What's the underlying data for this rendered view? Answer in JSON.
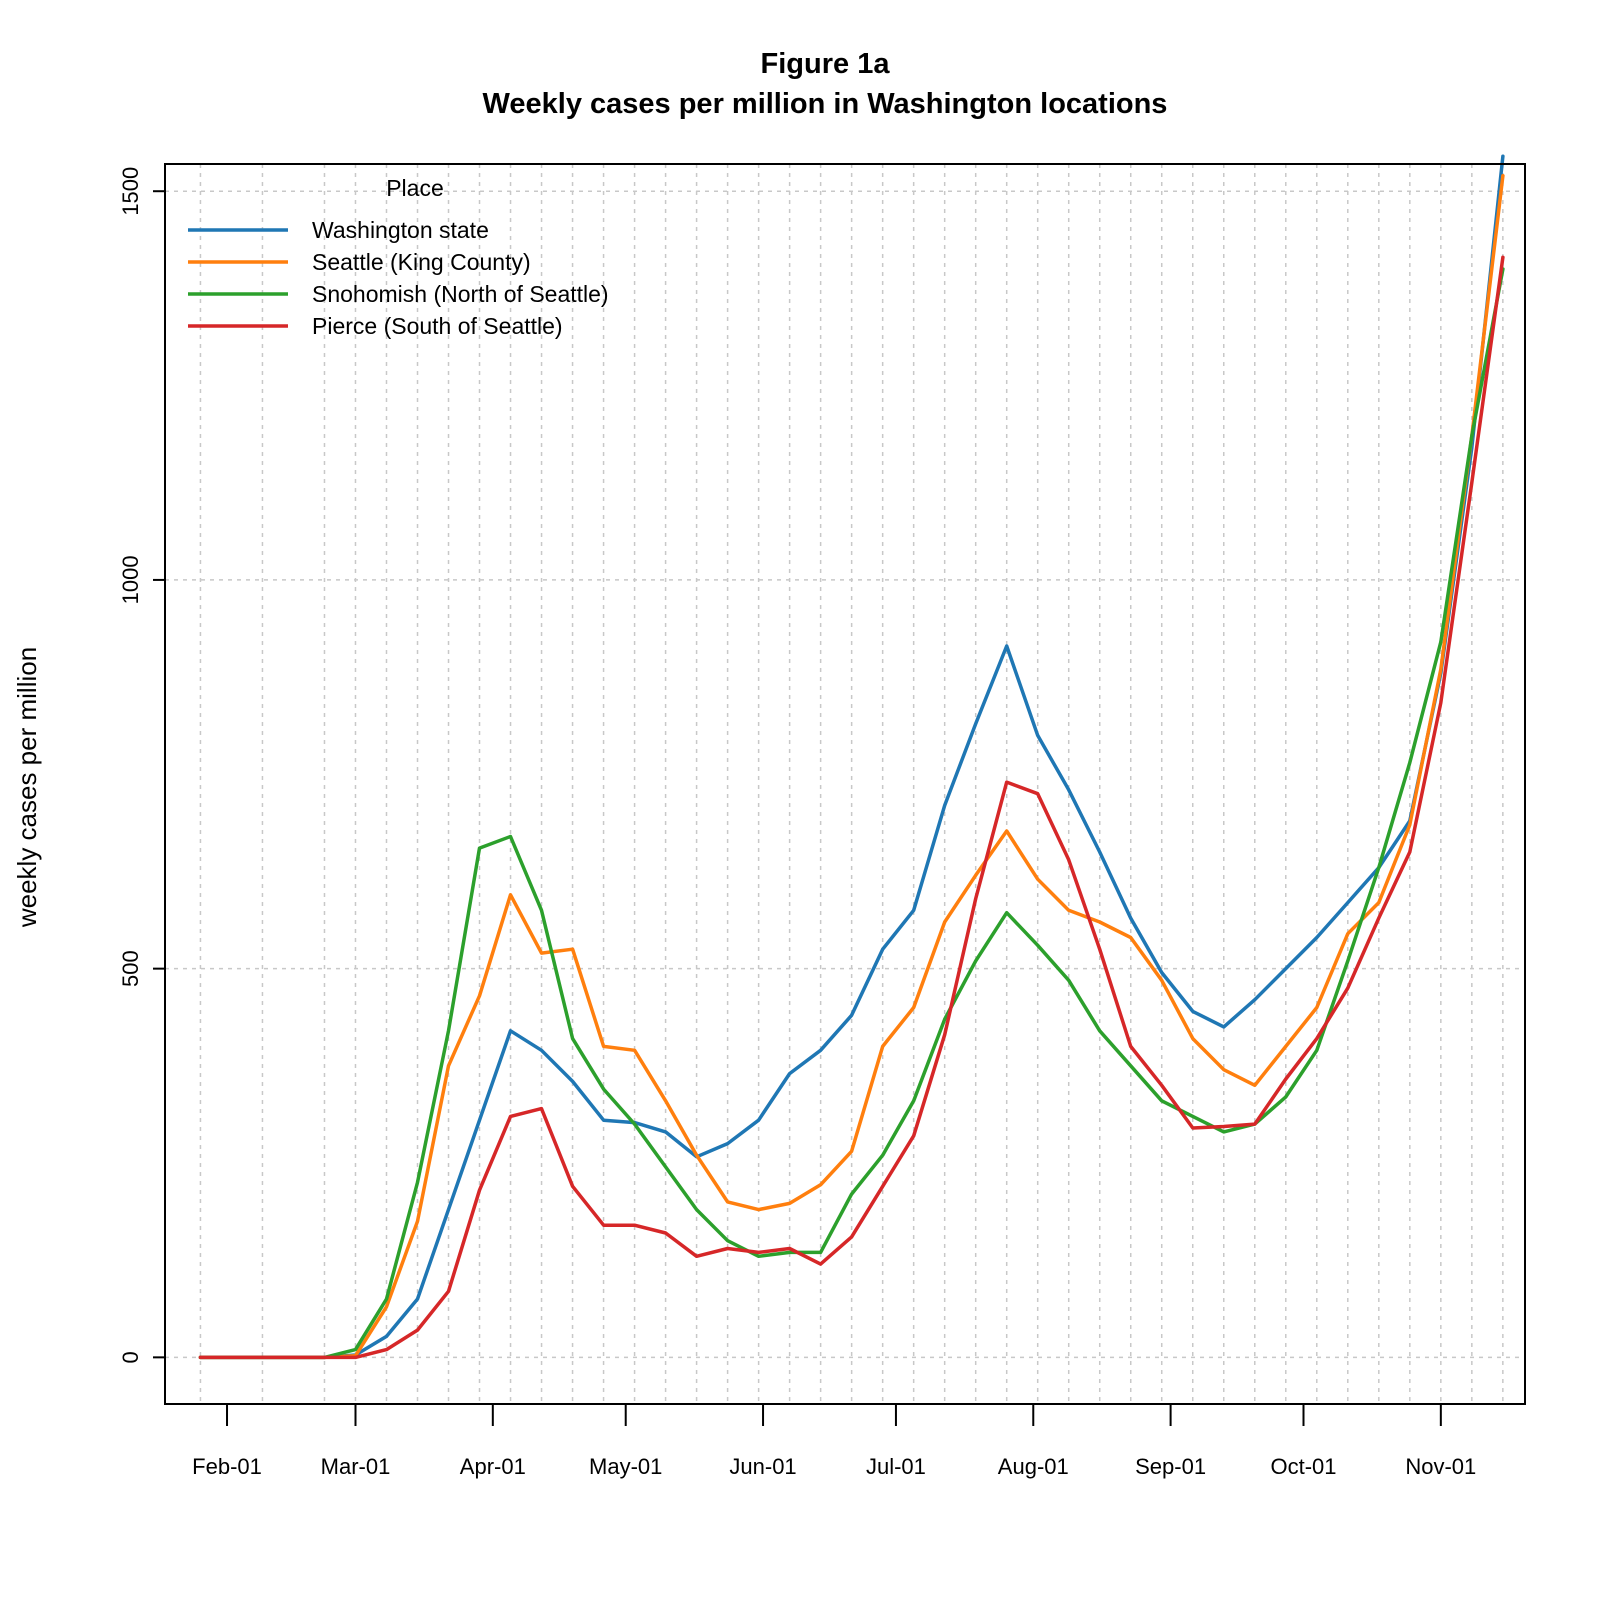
{
  "chart_data": {
    "type": "line",
    "title": "Figure 1a",
    "subtitle": "Weekly cases per million in Washington locations",
    "xlabel": "",
    "ylabel": "weekly cases per million",
    "ylim": [
      -60,
      1535
    ],
    "yticks": [
      0,
      500,
      1000,
      1500
    ],
    "xlim": [
      "2020-01-18",
      "2020-11-20"
    ],
    "xticks": [
      {
        "date": "2020-02-01",
        "label": "Feb-01"
      },
      {
        "date": "2020-03-01",
        "label": "Mar-01"
      },
      {
        "date": "2020-04-01",
        "label": "Apr-01"
      },
      {
        "date": "2020-05-01",
        "label": "May-01"
      },
      {
        "date": "2020-06-01",
        "label": "Jun-01"
      },
      {
        "date": "2020-07-01",
        "label": "Jul-01"
      },
      {
        "date": "2020-08-01",
        "label": "Aug-01"
      },
      {
        "date": "2020-09-01",
        "label": "Sep-01"
      },
      {
        "date": "2020-10-01",
        "label": "Oct-01"
      },
      {
        "date": "2020-11-01",
        "label": "Nov-01"
      }
    ],
    "x": [
      "2020-01-26",
      "2020-02-09",
      "2020-02-23",
      "2020-03-01",
      "2020-03-08",
      "2020-03-15",
      "2020-03-22",
      "2020-03-29",
      "2020-04-05",
      "2020-04-12",
      "2020-04-19",
      "2020-04-26",
      "2020-05-03",
      "2020-05-10",
      "2020-05-17",
      "2020-05-24",
      "2020-05-31",
      "2020-06-07",
      "2020-06-14",
      "2020-06-21",
      "2020-06-28",
      "2020-07-05",
      "2020-07-12",
      "2020-07-19",
      "2020-07-26",
      "2020-08-02",
      "2020-08-09",
      "2020-08-16",
      "2020-08-23",
      "2020-08-30",
      "2020-09-06",
      "2020-09-13",
      "2020-09-20",
      "2020-09-27",
      "2020-10-04",
      "2020-10-11",
      "2020-10-18",
      "2020-10-25",
      "2020-11-01",
      "2020-11-08",
      "2020-11-15"
    ],
    "series": [
      {
        "name": "Washington state",
        "color": "#1f77b4",
        "values": [
          0,
          0,
          0,
          3,
          27,
          75,
          190,
          305,
          420,
          395,
          355,
          305,
          302,
          290,
          258,
          275,
          305,
          365,
          395,
          440,
          525,
          575,
          710,
          815,
          915,
          800,
          730,
          650,
          565,
          495,
          445,
          425,
          460,
          500,
          540,
          585,
          630,
          690,
          880,
          1170,
          1545
        ]
      },
      {
        "name": "Seattle (King County)",
        "color": "#ff7f0e",
        "values": [
          0,
          0,
          0,
          2,
          65,
          175,
          375,
          465,
          595,
          520,
          525,
          400,
          395,
          330,
          260,
          200,
          190,
          198,
          222,
          265,
          400,
          450,
          560,
          620,
          677,
          615,
          575,
          560,
          540,
          485,
          410,
          370,
          350,
          400,
          450,
          545,
          585,
          685,
          885,
          1185,
          1520
        ]
      },
      {
        "name": "Snohomish (North of Seattle)",
        "color": "#2ca02c",
        "values": [
          0,
          0,
          0,
          10,
          75,
          225,
          420,
          655,
          670,
          575,
          410,
          345,
          300,
          245,
          190,
          150,
          130,
          135,
          135,
          210,
          260,
          330,
          435,
          510,
          572,
          530,
          485,
          420,
          375,
          330,
          310,
          290,
          300,
          335,
          395,
          510,
          630,
          765,
          920,
          1185,
          1400
        ]
      },
      {
        "name": "Pierce (South of Seattle)",
        "color": "#d62728",
        "values": [
          0,
          0,
          0,
          0,
          10,
          35,
          85,
          215,
          310,
          320,
          220,
          170,
          170,
          160,
          130,
          140,
          135,
          140,
          120,
          155,
          220,
          285,
          415,
          590,
          740,
          725,
          640,
          525,
          400,
          350,
          295,
          297,
          300,
          358,
          410,
          475,
          565,
          650,
          842,
          1125,
          1415
        ]
      }
    ],
    "legend": {
      "title": "Place",
      "position": "top-left"
    },
    "grid": true
  }
}
